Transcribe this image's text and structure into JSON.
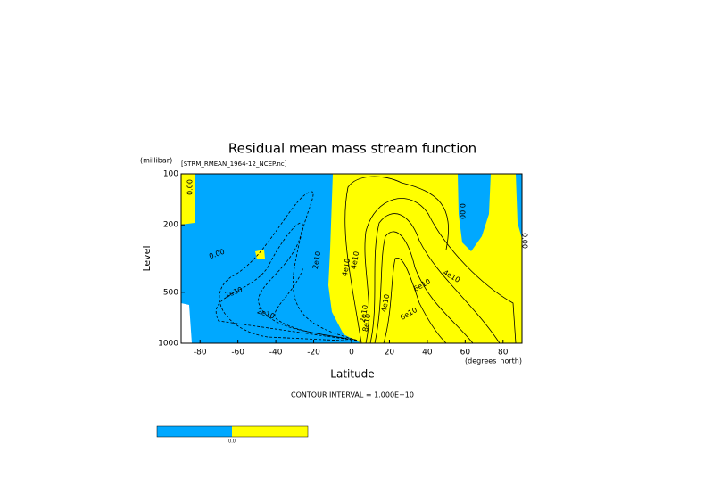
{
  "chart_data": {
    "type": "contour",
    "title": "Residual mean mass stream function",
    "subtitle": "[STRM_RMEAN_1964-12_NCEP.nc]",
    "x_label": "Latitude",
    "x_unit": "(degrees_north)",
    "y_label": "Level",
    "y_unit": "(millibar)",
    "xlim": [
      -90,
      90
    ],
    "xticks": [
      -80,
      -60,
      -40,
      -20,
      0,
      20,
      40,
      60,
      80
    ],
    "ylim": [
      1000,
      100
    ],
    "yticks": [
      100,
      200,
      500,
      1000
    ],
    "y_log_scale": true,
    "contour_labels": [
      "0.00",
      "0.00",
      "0.00",
      "0.00",
      "2e10",
      "2e10",
      "2e10",
      "4e10",
      "2e10",
      "4e10",
      "6e10",
      "4e10",
      "8e10",
      "6e10",
      "4e10"
    ],
    "note": "CONTOUR INTERVAL = 1.000E+10",
    "colors": {
      "negative": "#00a8ff",
      "positive": "#ffff00"
    },
    "colorbar_label": "0.0"
  }
}
